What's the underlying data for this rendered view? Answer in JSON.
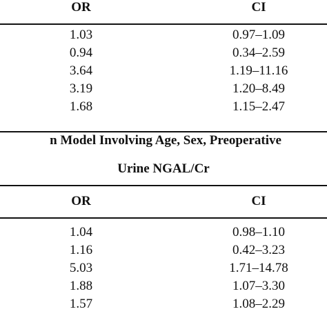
{
  "table1": {
    "headers": {
      "or": "OR",
      "ci": "CI"
    },
    "rows": [
      {
        "or": "1.03",
        "ci": "0.97–1.09"
      },
      {
        "or": "0.94",
        "ci": "0.34–2.59"
      },
      {
        "or": "3.64",
        "ci": "1.19–11.16"
      },
      {
        "or": "3.19",
        "ci": "1.20–8.49"
      },
      {
        "or": "1.68",
        "ci": "1.15–2.47"
      }
    ]
  },
  "table2": {
    "caption_line1": "n Model Involving Age, Sex, Preoperative",
    "caption_line2": "Urine NGAL/Cr",
    "headers": {
      "or": "OR",
      "ci": "CI"
    },
    "rows": [
      {
        "or": "1.04",
        "ci": "0.98–1.10"
      },
      {
        "or": "1.16",
        "ci": "0.42–3.23"
      },
      {
        "or": "5.03",
        "ci": "1.71–14.78"
      },
      {
        "or": "1.88",
        "ci": "1.07–3.30"
      },
      {
        "or": "1.57",
        "ci": "1.08–2.29"
      }
    ]
  }
}
